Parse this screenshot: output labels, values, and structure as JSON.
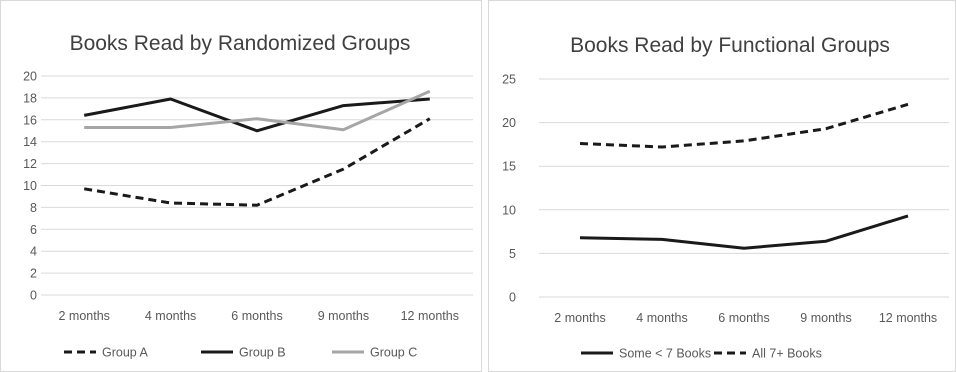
{
  "chart_data": [
    {
      "type": "line",
      "title": "Books Read by Randomized Groups",
      "categories": [
        "2 months",
        "4 months",
        "6 months",
        "9 months",
        "12 months"
      ],
      "ylim": [
        0,
        20
      ],
      "yticks": [
        0,
        2,
        4,
        6,
        8,
        10,
        12,
        14,
        16,
        18,
        20
      ],
      "grid": true,
      "legend_position": "bottom",
      "series": [
        {
          "name": "Group A",
          "values": [
            9.7,
            8.4,
            8.2,
            11.5,
            16.1
          ],
          "color": "#1a1a1a",
          "style": "dashed"
        },
        {
          "name": "Group B",
          "values": [
            16.4,
            17.9,
            15.0,
            17.3,
            17.9
          ],
          "color": "#1a1a1a",
          "style": "solid"
        },
        {
          "name": "Group C",
          "values": [
            15.3,
            15.3,
            16.1,
            15.1,
            18.6
          ],
          "color": "#a6a6a6",
          "style": "solid"
        }
      ]
    },
    {
      "type": "line",
      "title": "Books Read by Functional Groups",
      "categories": [
        "2 months",
        "4 months",
        "6 months",
        "9 months",
        "12 months"
      ],
      "ylim": [
        0,
        25
      ],
      "yticks": [
        0,
        5,
        10,
        15,
        20,
        25
      ],
      "grid": true,
      "legend_position": "bottom",
      "series": [
        {
          "name": "Some < 7 Books",
          "values": [
            6.8,
            6.6,
            5.6,
            6.4,
            9.3
          ],
          "color": "#1a1a1a",
          "style": "solid"
        },
        {
          "name": "All 7+ Books",
          "values": [
            17.6,
            17.2,
            17.9,
            19.3,
            22.1
          ],
          "color": "#1a1a1a",
          "style": "dashed"
        }
      ]
    }
  ]
}
